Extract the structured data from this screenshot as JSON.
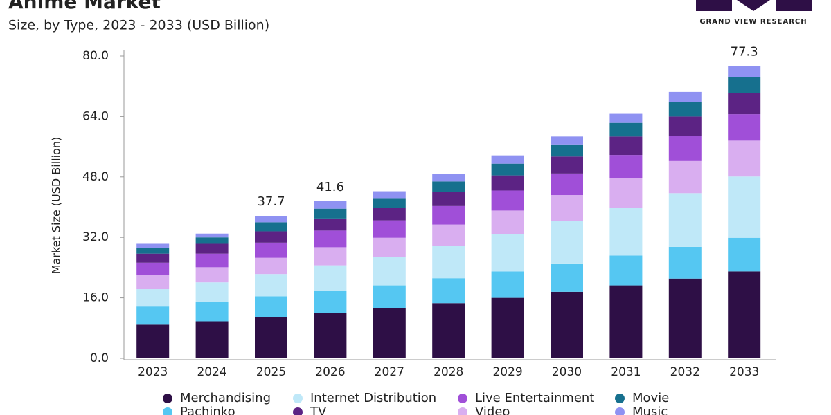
{
  "chart_data": {
    "type": "stacked-bar",
    "title": "Anime Market",
    "subtitle": "Size, by Type, 2023 - 2033 (USD Billion)",
    "brand": "GRAND VIEW RESEARCH",
    "y_label": "Market Size (USD Billion)",
    "categories": [
      "2023",
      "2024",
      "2025",
      "2026",
      "2027",
      "2028",
      "2029",
      "2030",
      "2031",
      "2032",
      "2033"
    ],
    "series": [
      {
        "name": "Merchandising",
        "color": "#2e0f46",
        "values": [
          8.9,
          9.8,
          10.9,
          12.0,
          13.2,
          14.6,
          16.0,
          17.6,
          19.3,
          21.1,
          23.0
        ]
      },
      {
        "name": "Pachinko",
        "color": "#55c7f2",
        "values": [
          4.8,
          5.1,
          5.5,
          5.8,
          6.1,
          6.6,
          7.0,
          7.5,
          7.9,
          8.4,
          8.9
        ]
      },
      {
        "name": "Internet Distribution",
        "color": "#bfe8f8",
        "values": [
          4.6,
          5.2,
          5.9,
          6.8,
          7.6,
          8.5,
          9.9,
          11.2,
          12.6,
          14.2,
          16.2
        ]
      },
      {
        "name": "Video",
        "color": "#d9aef0",
        "values": [
          3.7,
          4.0,
          4.3,
          4.8,
          5.0,
          5.7,
          6.2,
          6.9,
          7.8,
          8.5,
          9.5
        ]
      },
      {
        "name": "Live Entertainment",
        "color": "#a04fd8",
        "values": [
          3.3,
          3.6,
          4.0,
          4.4,
          4.6,
          4.9,
          5.3,
          5.7,
          6.2,
          6.6,
          7.0
        ]
      },
      {
        "name": "TV",
        "color": "#5c2384",
        "values": [
          2.4,
          2.6,
          3.0,
          3.2,
          3.4,
          3.7,
          4.0,
          4.5,
          4.9,
          5.2,
          5.6
        ]
      },
      {
        "name": "Movie",
        "color": "#16708e",
        "values": [
          1.5,
          1.7,
          2.4,
          2.6,
          2.5,
          2.8,
          3.1,
          3.2,
          3.6,
          3.9,
          4.3
        ]
      },
      {
        "name": "Music",
        "color": "#8f92f2",
        "values": [
          1.1,
          1.0,
          1.7,
          2.0,
          1.8,
          2.0,
          2.2,
          2.1,
          2.4,
          2.6,
          2.8
        ]
      }
    ],
    "total_labels": [
      null,
      null,
      37.7,
      41.6,
      null,
      null,
      null,
      null,
      null,
      null,
      77.3
    ],
    "ylim": [
      0,
      80
    ],
    "yticks": [
      {
        "value": 0,
        "label": "0.0"
      },
      {
        "value": 16,
        "label": "16.0"
      },
      {
        "value": 32,
        "label": "32.0"
      },
      {
        "value": 48,
        "label": "48.0"
      },
      {
        "value": 64,
        "label": "64.0"
      },
      {
        "value": 80,
        "label": "80.0"
      }
    ]
  }
}
